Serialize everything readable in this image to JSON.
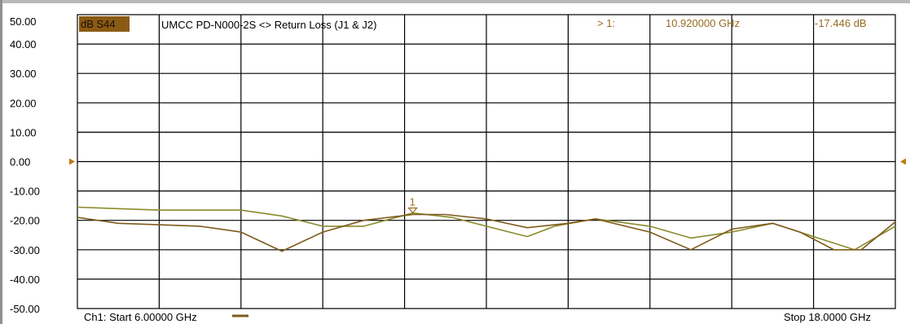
{
  "header": {
    "trace_badge": "dB S44",
    "trace_title": "UMCC  PD-N000-2S <> Return Loss (J1 & J2)",
    "marker_label": "> 1:",
    "marker_freq": "10.920000 GHz",
    "marker_value": "-17.446 dB"
  },
  "footer": {
    "start": "Ch1: Start  6.00000 GHz",
    "stop": "Stop  18.0000 GHz"
  },
  "marker_number": "1",
  "colors": {
    "badge_bg": "#8a5a14",
    "trace_light": "#8a8a2c",
    "trace_dark": "#7e5a1a",
    "marker_text": "#9a6a20",
    "grid": "#000000"
  },
  "chart_data": {
    "type": "line",
    "title": "UMCC  PD-N000-2S <> Return Loss (J1 & J2)",
    "xlabel": "",
    "ylabel": "dB S44",
    "xlim": [
      6.0,
      18.0
    ],
    "ylim": [
      -50,
      50
    ],
    "y_ticks": [
      "50.00",
      "40.00",
      "30.00",
      "20.00",
      "10.00",
      "0.00",
      "-10.00",
      "-20.00",
      "-30.00",
      "-40.00",
      "-50.00"
    ],
    "grid": true,
    "reference_level": 0,
    "marker": {
      "id": "1",
      "x": 10.92,
      "y": -17.446
    },
    "series": [
      {
        "x": [
          6.0,
          7.2,
          8.4,
          9.0,
          9.6,
          10.2,
          10.92,
          11.5,
          12.0,
          12.6,
          13.0,
          13.6,
          14.4,
          15.0,
          15.6,
          16.2,
          16.8,
          17.4,
          18.0
        ],
        "y": [
          -15.5,
          -16.5,
          -16.5,
          -18.5,
          -22,
          -22,
          -17.5,
          -19,
          -22,
          -25.5,
          -22,
          -19.5,
          -22,
          -26,
          -24,
          -21,
          -25.5,
          -30,
          -22
        ]
      },
      {
        "x": [
          6.0,
          6.6,
          7.2,
          7.8,
          8.4,
          9.0,
          9.6,
          10.2,
          10.92,
          11.4,
          12.0,
          12.6,
          13.2,
          13.6,
          14.4,
          15.0,
          15.6,
          16.2,
          16.6,
          17.1,
          17.5,
          18.0
        ],
        "y": [
          -19,
          -21,
          -21.5,
          -22,
          -24,
          -30.5,
          -24,
          -20,
          -18,
          -18,
          -19.5,
          -22.5,
          -21,
          -19.5,
          -24,
          -30,
          -23,
          -21,
          -24,
          -30,
          -30,
          -20.5
        ]
      }
    ]
  }
}
